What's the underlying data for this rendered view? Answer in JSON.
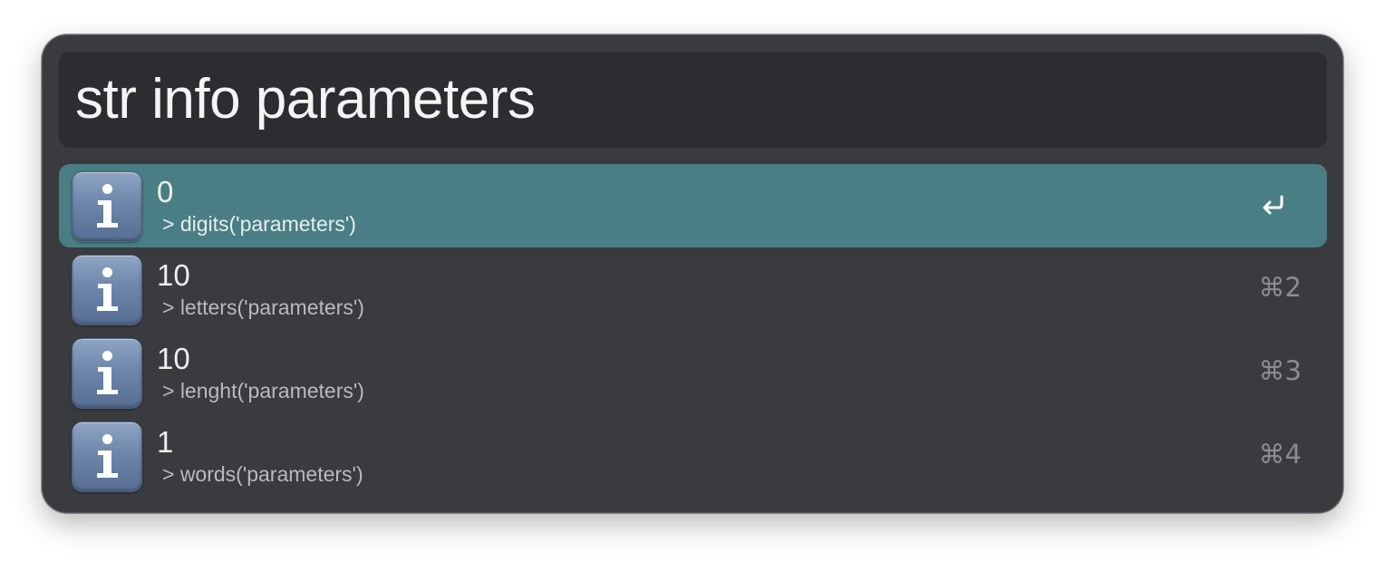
{
  "search": {
    "query": "str info parameters"
  },
  "results": [
    {
      "title": "0",
      "subtitle": "> digits('parameters')",
      "shortcut": "",
      "icon": "info-icon",
      "selected": true
    },
    {
      "title": "10",
      "subtitle": "> letters('parameters')",
      "shortcut": "⌘2",
      "icon": "info-icon",
      "selected": false
    },
    {
      "title": "10",
      "subtitle": "> lenght('parameters')",
      "shortcut": "⌘3",
      "icon": "info-icon",
      "selected": false
    },
    {
      "title": "1",
      "subtitle": "> words('parameters')",
      "shortcut": "⌘4",
      "icon": "info-icon",
      "selected": false
    }
  ],
  "colors": {
    "window_bg": "#3a3b3f",
    "search_bg": "#2c2d30",
    "selected_row": "#4a7e85",
    "text_primary": "#ededee",
    "text_secondary": "#b9babd",
    "shortcut_text": "#8b8c90"
  }
}
